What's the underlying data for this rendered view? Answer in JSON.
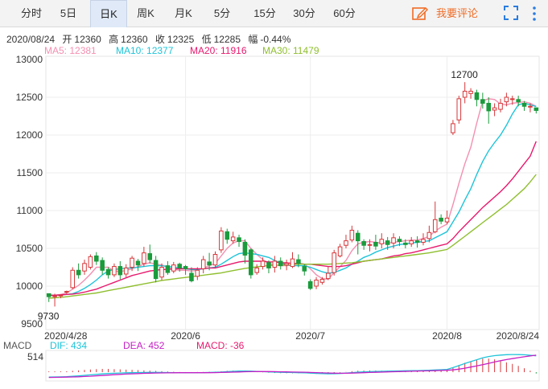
{
  "tabs": [
    {
      "label": "分时",
      "active": false
    },
    {
      "label": "5日",
      "active": false
    },
    {
      "label": "日K",
      "active": true
    },
    {
      "label": "周K",
      "active": false
    },
    {
      "label": "月K",
      "active": false
    },
    {
      "label": "5分",
      "active": false
    },
    {
      "label": "15分",
      "active": false
    },
    {
      "label": "30分",
      "active": false
    },
    {
      "label": "60分",
      "active": false
    }
  ],
  "toolbar": {
    "comment_label": "我要评论",
    "comment_icon": "edit-icon",
    "expand_icon": "expand-icon",
    "more_icon": "more-vertical-icon",
    "accent_color": "#ef6c26"
  },
  "quote": {
    "date": "2020/08/24",
    "open_label": "开",
    "open": "12360",
    "high_label": "高",
    "high": "12360",
    "close_label": "收",
    "close": "12325",
    "low_label": "低",
    "low": "12285",
    "change_label": "幅",
    "change": "-0.44%"
  },
  "ma_legend": [
    {
      "label": "MA5: 12381",
      "color": "#f48fb1"
    },
    {
      "label": "MA10: 12377",
      "color": "#1ec4d9"
    },
    {
      "label": "MA20: 11916",
      "color": "#e8186d"
    },
    {
      "label": "MA30: 11479",
      "color": "#8fbf2f"
    }
  ],
  "macd_legend": {
    "title": "MACD",
    "dif": "DIF: 434",
    "dea": "DEA: 452",
    "macd": "MACD: -36",
    "dif_color": "#1ec4d9",
    "dea_color": "#c51fc5",
    "macd_color": "#e8186d",
    "axis_label": "514"
  },
  "chart_data": {
    "type": "candlestick",
    "up_color": "#d6373a",
    "down_color": "#1a9b3c",
    "ylim": [
      9500,
      13000
    ],
    "y_ticks": [
      "13000",
      "12500",
      "12000",
      "11500",
      "11000",
      "10500",
      "10000",
      "9500"
    ],
    "x_ticks": [
      {
        "index": 0,
        "label": "2020/4/28"
      },
      {
        "index": 23,
        "label": "2020/6"
      },
      {
        "index": 44,
        "label": "2020/7"
      },
      {
        "index": 67,
        "label": "2020/8"
      },
      {
        "index": 82,
        "label": "2020/8/24"
      }
    ],
    "annotations": [
      {
        "index": 71,
        "value": 12700,
        "label": "12700",
        "position": "above"
      },
      {
        "index": 1,
        "value": 9730,
        "label": "9730",
        "position": "below"
      }
    ],
    "candles": [
      [
        9900,
        9860,
        9900,
        9790
      ],
      [
        9860,
        9870,
        9900,
        9730
      ],
      [
        9880,
        9880,
        9890,
        9840
      ],
      [
        9920,
        9930,
        9940,
        9900
      ],
      [
        9980,
        10210,
        10250,
        9960
      ],
      [
        10210,
        10150,
        10300,
        10100
      ],
      [
        10200,
        10300,
        10350,
        10150
      ],
      [
        10250,
        10390,
        10420,
        10220
      ],
      [
        10400,
        10330,
        10450,
        10280
      ],
      [
        10340,
        10210,
        10380,
        10150
      ],
      [
        10220,
        10150,
        10250,
        10100
      ],
      [
        10150,
        10260,
        10300,
        10120
      ],
      [
        10260,
        10150,
        10330,
        10090
      ],
      [
        10160,
        10240,
        10290,
        10120
      ],
      [
        10250,
        10370,
        10400,
        10200
      ],
      [
        10330,
        10280,
        10360,
        10200
      ],
      [
        10300,
        10440,
        10520,
        10260
      ],
      [
        10430,
        10350,
        10550,
        10300
      ],
      [
        10340,
        10100,
        10400,
        10050
      ],
      [
        10120,
        10250,
        10300,
        10080
      ],
      [
        10270,
        10180,
        10330,
        10150
      ],
      [
        10200,
        10280,
        10320,
        10170
      ],
      [
        10290,
        10240,
        10310,
        10190
      ],
      [
        10260,
        10230,
        10280,
        10150
      ],
      [
        10170,
        10070,
        10250,
        10050
      ],
      [
        10130,
        10210,
        10250,
        10080
      ],
      [
        10230,
        10350,
        10400,
        10170
      ],
      [
        10320,
        10280,
        10440,
        10210
      ],
      [
        10280,
        10420,
        10460,
        10250
      ],
      [
        10480,
        10730,
        10780,
        10440
      ],
      [
        10720,
        10620,
        10760,
        10560
      ],
      [
        10600,
        10650,
        10720,
        10560
      ],
      [
        10640,
        10590,
        10680,
        10520
      ],
      [
        10580,
        10410,
        10620,
        10300
      ],
      [
        10480,
        10150,
        10500,
        10100
      ],
      [
        10180,
        10240,
        10290,
        10150
      ],
      [
        10260,
        10330,
        10380,
        10220
      ],
      [
        10310,
        10240,
        10340,
        10170
      ],
      [
        10250,
        10330,
        10400,
        10180
      ],
      [
        10330,
        10270,
        10380,
        10220
      ],
      [
        10280,
        10300,
        10350,
        10210
      ],
      [
        10260,
        10360,
        10450,
        10240
      ],
      [
        10350,
        10300,
        10420,
        10250
      ],
      [
        10260,
        10200,
        10290,
        10140
      ],
      [
        10060,
        9970,
        10090,
        9950
      ],
      [
        10000,
        10080,
        10120,
        9960
      ],
      [
        10050,
        10090,
        10120,
        10020
      ],
      [
        10100,
        10170,
        10260,
        10080
      ],
      [
        10180,
        10440,
        10480,
        10140
      ],
      [
        10400,
        10520,
        10560,
        10380
      ],
      [
        10540,
        10600,
        10680,
        10500
      ],
      [
        10610,
        10740,
        10800,
        10580
      ],
      [
        10700,
        10600,
        10740,
        10420
      ],
      [
        10590,
        10540,
        10620,
        10480
      ],
      [
        10540,
        10550,
        10620,
        10460
      ],
      [
        10580,
        10530,
        10680,
        10480
      ],
      [
        10560,
        10620,
        10700,
        10500
      ],
      [
        10600,
        10550,
        10650,
        10480
      ],
      [
        10570,
        10640,
        10700,
        10500
      ],
      [
        10620,
        10590,
        10660,
        10530
      ],
      [
        10570,
        10550,
        10620,
        10500
      ],
      [
        10560,
        10600,
        10650,
        10520
      ],
      [
        10600,
        10580,
        10660,
        10510
      ],
      [
        10580,
        10620,
        10700,
        10540
      ],
      [
        10630,
        10710,
        10800,
        10580
      ],
      [
        10720,
        10880,
        11120,
        10700
      ],
      [
        10900,
        10860,
        10950,
        10820
      ],
      [
        10850,
        10900,
        11000,
        10820
      ],
      [
        12030,
        12150,
        12200,
        12000
      ],
      [
        12200,
        12480,
        12520,
        12150
      ],
      [
        12500,
        12580,
        12700,
        12420
      ],
      [
        12550,
        12580,
        12620,
        12480
      ],
      [
        12560,
        12470,
        12600,
        12380
      ],
      [
        12470,
        12420,
        12560,
        12350
      ],
      [
        12420,
        12320,
        12500,
        12150
      ],
      [
        12330,
        12360,
        12420,
        12250
      ],
      [
        12340,
        12420,
        12480,
        12300
      ],
      [
        12440,
        12500,
        12560,
        12380
      ],
      [
        12480,
        12480,
        12520,
        12400
      ],
      [
        12470,
        12440,
        12520,
        12380
      ],
      [
        12420,
        12380,
        12450,
        12320
      ],
      [
        12370,
        12380,
        12420,
        12300
      ],
      [
        12360,
        12325,
        12360,
        12285
      ]
    ],
    "series": [
      {
        "name": "MA5",
        "color": "#f48fb1",
        "values": [
          9870,
          9880,
          9890,
          9910,
          9960,
          10010,
          10080,
          10160,
          10250,
          10250,
          10250,
          10200,
          10190,
          10210,
          10230,
          10260,
          10290,
          10310,
          10290,
          10280,
          10250,
          10220,
          10210,
          10210,
          10200,
          10210,
          10240,
          10270,
          10300,
          10400,
          10500,
          10570,
          10600,
          10600,
          10500,
          10420,
          10350,
          10300,
          10280,
          10270,
          10270,
          10280,
          10300,
          10290,
          10230,
          10150,
          10100,
          10090,
          10180,
          10260,
          10340,
          10470,
          10560,
          10580,
          10590,
          10580,
          10570,
          10570,
          10580,
          10590,
          10600,
          10610,
          10610,
          10630,
          10660,
          10730,
          10780,
          10820,
          11080,
          11360,
          11620,
          11840,
          12160,
          12450,
          12480,
          12470,
          12410,
          12400,
          12420,
          12430,
          12440,
          12420,
          12381
        ]
      },
      {
        "name": "MA10",
        "color": "#1ec4d9",
        "values": [
          9880,
          9880,
          9880,
          9890,
          9900,
          9930,
          9970,
          10020,
          10080,
          10150,
          10200,
          10220,
          10230,
          10240,
          10240,
          10250,
          10260,
          10270,
          10270,
          10270,
          10260,
          10250,
          10240,
          10230,
          10220,
          10220,
          10230,
          10240,
          10250,
          10290,
          10340,
          10390,
          10430,
          10440,
          10430,
          10420,
          10400,
          10380,
          10340,
          10310,
          10280,
          10270,
          10270,
          10270,
          10250,
          10220,
          10190,
          10170,
          10180,
          10210,
          10240,
          10290,
          10330,
          10380,
          10410,
          10450,
          10480,
          10510,
          10530,
          10550,
          10560,
          10570,
          10580,
          10590,
          10600,
          10640,
          10680,
          10720,
          10850,
          10980,
          11140,
          11290,
          11480,
          11650,
          11790,
          11900,
          12000,
          12130,
          12280,
          12400,
          12420,
          12400,
          12377
        ]
      },
      {
        "name": "MA20",
        "color": "#e8186d",
        "values": [
          9880,
          9880,
          9885,
          9890,
          9895,
          9905,
          9920,
          9940,
          9960,
          9990,
          10020,
          10050,
          10080,
          10110,
          10140,
          10160,
          10180,
          10200,
          10210,
          10220,
          10220,
          10230,
          10230,
          10230,
          10230,
          10230,
          10230,
          10240,
          10240,
          10260,
          10280,
          10300,
          10320,
          10330,
          10330,
          10330,
          10330,
          10320,
          10320,
          10310,
          10310,
          10300,
          10300,
          10290,
          10290,
          10280,
          10270,
          10260,
          10260,
          10260,
          10270,
          10290,
          10310,
          10330,
          10340,
          10350,
          10360,
          10380,
          10400,
          10410,
          10430,
          10440,
          10460,
          10480,
          10500,
          10520,
          10540,
          10560,
          10630,
          10720,
          10800,
          10880,
          10960,
          11040,
          11110,
          11180,
          11250,
          11330,
          11420,
          11520,
          11620,
          11720,
          11916
        ]
      },
      {
        "name": "MA30",
        "color": "#8fbf2f",
        "values": [
          9840,
          9845,
          9850,
          9860,
          9870,
          9880,
          9890,
          9900,
          9910,
          9925,
          9940,
          9955,
          9970,
          9985,
          10000,
          10015,
          10030,
          10045,
          10060,
          10075,
          10085,
          10095,
          10105,
          10115,
          10125,
          10135,
          10145,
          10155,
          10165,
          10175,
          10190,
          10205,
          10220,
          10235,
          10245,
          10255,
          10265,
          10270,
          10275,
          10280,
          10280,
          10285,
          10290,
          10290,
          10290,
          10290,
          10290,
          10290,
          10295,
          10300,
          10305,
          10310,
          10320,
          10330,
          10340,
          10350,
          10360,
          10370,
          10380,
          10390,
          10400,
          10410,
          10420,
          10430,
          10440,
          10455,
          10470,
          10485,
          10540,
          10600,
          10660,
          10720,
          10780,
          10840,
          10900,
          10960,
          11020,
          11080,
          11150,
          11220,
          11290,
          11380,
          11479
        ]
      }
    ],
    "macd": {
      "dif": [
        -130,
        -128,
        -125,
        -120,
        -110,
        -98,
        -85,
        -72,
        -58,
        -45,
        -35,
        -28,
        -22,
        -17,
        -13,
        -10,
        -8,
        -6,
        -6,
        -7,
        -9,
        -11,
        -13,
        -14,
        -14,
        -13,
        -11,
        -8,
        -4,
        4,
        14,
        22,
        28,
        30,
        27,
        21,
        14,
        8,
        2,
        -3,
        -7,
        -10,
        -13,
        -17,
        -25,
        -34,
        -40,
        -44,
        -42,
        -35,
        -25,
        -12,
        0,
        8,
        14,
        18,
        22,
        26,
        30,
        34,
        37,
        40,
        42,
        45,
        50,
        58,
        66,
        74,
        120,
        175,
        230,
        280,
        330,
        380,
        415,
        440,
        455,
        465,
        470,
        468,
        462,
        450,
        434
      ],
      "dea": [
        -140,
        -138,
        -135,
        -132,
        -128,
        -122,
        -115,
        -107,
        -98,
        -88,
        -78,
        -68,
        -59,
        -51,
        -44,
        -38,
        -32,
        -27,
        -23,
        -20,
        -18,
        -16,
        -15,
        -15,
        -15,
        -15,
        -14,
        -13,
        -11,
        -8,
        -4,
        1,
        6,
        11,
        14,
        16,
        16,
        15,
        13,
        10,
        7,
        4,
        1,
        -2,
        -7,
        -12,
        -18,
        -23,
        -27,
        -29,
        -28,
        -25,
        -20,
        -14,
        -8,
        -3,
        2,
        7,
        12,
        17,
        21,
        25,
        29,
        32,
        36,
        40,
        45,
        50,
        60,
        80,
        105,
        135,
        165,
        200,
        235,
        270,
        305,
        335,
        360,
        385,
        410,
        430,
        452
      ]
    }
  }
}
